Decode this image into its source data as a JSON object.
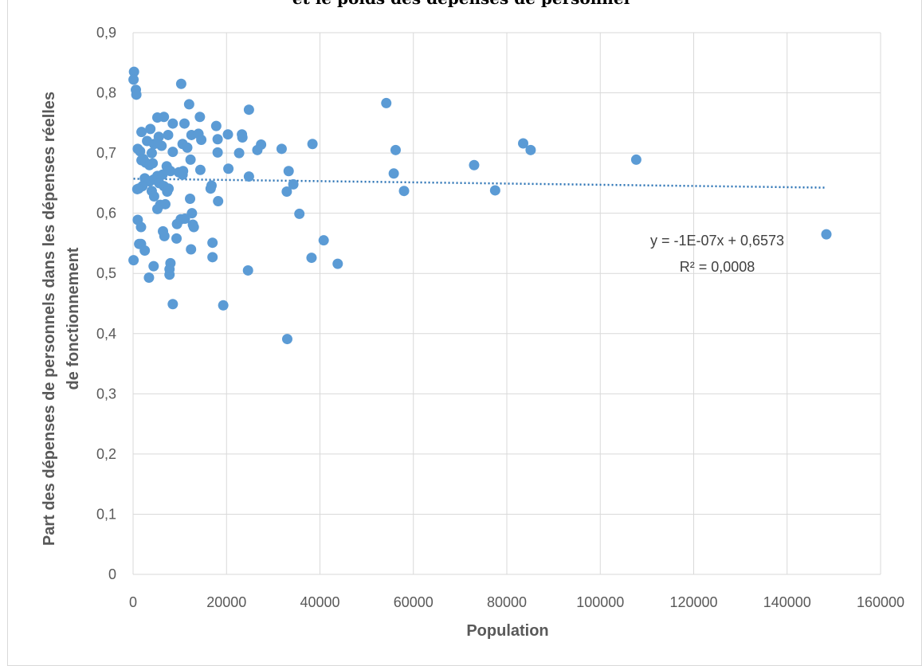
{
  "chart_data": {
    "type": "scatter",
    "title": "et le poids des dépenses de personnel",
    "xlabel": "Population",
    "ylabel": [
      "Part des dépenses de personnels dans les dépenses réelles",
      "de fonctionnement"
    ],
    "xlim": [
      0,
      160000
    ],
    "ylim": [
      0,
      0.9
    ],
    "x_ticks": [
      "0",
      "20000",
      "40000",
      "60000",
      "80000",
      "100000",
      "120000",
      "140000",
      "160000"
    ],
    "y_ticks": [
      "0",
      "0,1",
      "0,2",
      "0,3",
      "0,4",
      "0,5",
      "0,6",
      "0,7",
      "0,8",
      "0,9"
    ],
    "grid": true,
    "marker_color": "#5b9bd5",
    "trendline": {
      "slope": -1e-07,
      "intercept": 0.6573,
      "equation_text": "y = -1E-07x + 0,6573",
      "r2_text": "R² = 0,0008",
      "color": "#2e75b6",
      "style": "dotted"
    },
    "points": [
      [
        200,
        0.835
      ],
      [
        100,
        0.822
      ],
      [
        600,
        0.805
      ],
      [
        700,
        0.797
      ],
      [
        10300,
        0.815
      ],
      [
        54200,
        0.783
      ],
      [
        12000,
        0.781
      ],
      [
        24800,
        0.772
      ],
      [
        14300,
        0.76
      ],
      [
        6600,
        0.76
      ],
      [
        5200,
        0.759
      ],
      [
        17800,
        0.745
      ],
      [
        8500,
        0.749
      ],
      [
        11000,
        0.749
      ],
      [
        3700,
        0.74
      ],
      [
        1800,
        0.735
      ],
      [
        7500,
        0.73
      ],
      [
        12500,
        0.73
      ],
      [
        14000,
        0.732
      ],
      [
        20300,
        0.731
      ],
      [
        23300,
        0.731
      ],
      [
        5500,
        0.727
      ],
      [
        3000,
        0.72
      ],
      [
        14600,
        0.722
      ],
      [
        18100,
        0.723
      ],
      [
        23400,
        0.726
      ],
      [
        6100,
        0.712
      ],
      [
        4500,
        0.715
      ],
      [
        10600,
        0.715
      ],
      [
        11600,
        0.709
      ],
      [
        27400,
        0.714
      ],
      [
        26600,
        0.705
      ],
      [
        38400,
        0.715
      ],
      [
        83500,
        0.716
      ],
      [
        85100,
        0.705
      ],
      [
        56200,
        0.705
      ],
      [
        31800,
        0.707
      ],
      [
        1000,
        0.707
      ],
      [
        1500,
        0.703
      ],
      [
        4000,
        0.7
      ],
      [
        8500,
        0.702
      ],
      [
        18100,
        0.701
      ],
      [
        22700,
        0.7
      ],
      [
        2200,
        0.69
      ],
      [
        1800,
        0.688
      ],
      [
        2700,
        0.684
      ],
      [
        3500,
        0.68
      ],
      [
        4200,
        0.683
      ],
      [
        12300,
        0.689
      ],
      [
        7200,
        0.678
      ],
      [
        7600,
        0.672
      ],
      [
        8000,
        0.67
      ],
      [
        9800,
        0.668
      ],
      [
        10600,
        0.664
      ],
      [
        10700,
        0.67
      ],
      [
        14400,
        0.672
      ],
      [
        20400,
        0.674
      ],
      [
        33300,
        0.67
      ],
      [
        73000,
        0.68
      ],
      [
        107700,
        0.689
      ],
      [
        55800,
        0.666
      ],
      [
        24800,
        0.661
      ],
      [
        5200,
        0.662
      ],
      [
        6300,
        0.664
      ],
      [
        4400,
        0.656
      ],
      [
        3500,
        0.653
      ],
      [
        2500,
        0.658
      ],
      [
        5600,
        0.65
      ],
      [
        6600,
        0.645
      ],
      [
        7600,
        0.641
      ],
      [
        2000,
        0.645
      ],
      [
        1200,
        0.641
      ],
      [
        900,
        0.64
      ],
      [
        4000,
        0.637
      ],
      [
        7300,
        0.636
      ],
      [
        4500,
        0.628
      ],
      [
        16600,
        0.641
      ],
      [
        16800,
        0.646
      ],
      [
        32900,
        0.636
      ],
      [
        34300,
        0.648
      ],
      [
        58000,
        0.637
      ],
      [
        77500,
        0.638
      ],
      [
        12200,
        0.624
      ],
      [
        18200,
        0.62
      ],
      [
        5800,
        0.614
      ],
      [
        6900,
        0.615
      ],
      [
        5200,
        0.607
      ],
      [
        12600,
        0.6
      ],
      [
        35600,
        0.599
      ],
      [
        1000,
        0.589
      ],
      [
        9400,
        0.582
      ],
      [
        10200,
        0.59
      ],
      [
        11100,
        0.591
      ],
      [
        12800,
        0.581
      ],
      [
        13000,
        0.577
      ],
      [
        1700,
        0.577
      ],
      [
        6400,
        0.57
      ],
      [
        6700,
        0.562
      ],
      [
        9300,
        0.558
      ],
      [
        148400,
        0.565
      ],
      [
        1300,
        0.549
      ],
      [
        1700,
        0.549
      ],
      [
        17000,
        0.551
      ],
      [
        40800,
        0.555
      ],
      [
        12400,
        0.54
      ],
      [
        2500,
        0.538
      ],
      [
        8000,
        0.517
      ],
      [
        17000,
        0.527
      ],
      [
        38200,
        0.526
      ],
      [
        43800,
        0.516
      ],
      [
        4400,
        0.512
      ],
      [
        7800,
        0.507
      ],
      [
        100,
        0.522
      ],
      [
        7800,
        0.498
      ],
      [
        3400,
        0.493
      ],
      [
        24600,
        0.505
      ],
      [
        8500,
        0.449
      ],
      [
        19300,
        0.447
      ],
      [
        33000,
        0.391
      ]
    ]
  }
}
